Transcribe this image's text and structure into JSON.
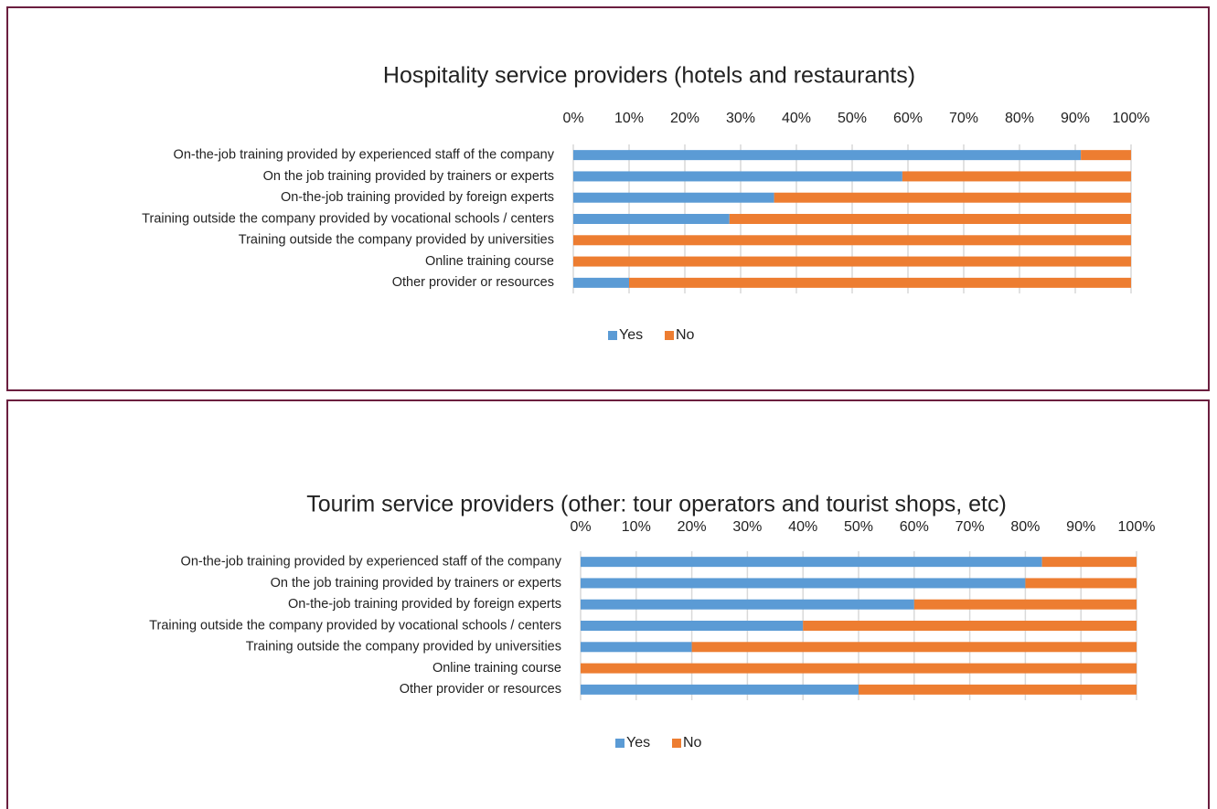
{
  "chart_data": [
    {
      "type": "stacked_bar_horizontal",
      "title": "Hospitality service providers (hotels and restaurants)",
      "categories": [
        "On-the-job training provided by experienced staff of the company",
        "On the job training provided by trainers or experts",
        "On-the-job training provided by foreign experts",
        "Training outside the company provided by vocational schools / centers",
        "Training outside the company provided by universities",
        "Online training course",
        "Other provider or resources"
      ],
      "series": [
        {
          "name": "Yes",
          "color": "#5b9bd5",
          "values": [
            91,
            59,
            36,
            28,
            0,
            0,
            10
          ]
        },
        {
          "name": "No",
          "color": "#ed7d31",
          "values": [
            9,
            41,
            64,
            72,
            100,
            100,
            90
          ]
        }
      ],
      "xlim": [
        0,
        100
      ],
      "xticks": [
        {
          "value": 0,
          "label": "0%"
        },
        {
          "value": 10,
          "label": "10%"
        },
        {
          "value": 20,
          "label": "20%"
        },
        {
          "value": 30,
          "label": "30%"
        },
        {
          "value": 40,
          "label": "40%"
        },
        {
          "value": 50,
          "label": "50%"
        },
        {
          "value": 60,
          "label": "60%"
        },
        {
          "value": 70,
          "label": "70%"
        },
        {
          "value": 80,
          "label": "80%"
        },
        {
          "value": 90,
          "label": "90%"
        },
        {
          "value": 100,
          "label": "100%"
        }
      ],
      "grid": true,
      "legend": "bottom"
    },
    {
      "type": "stacked_bar_horizontal",
      "title": "Tourim service providers (other: tour operators and tourist shops, etc)",
      "categories": [
        "On-the-job training provided by experienced staff of the company",
        "On the job training provided by trainers or experts",
        "On-the-job training provided by foreign experts",
        "Training outside the company provided by vocational schools / centers",
        "Training outside the company provided by universities",
        "Online training course",
        "Other provider or resources"
      ],
      "series": [
        {
          "name": "Yes",
          "color": "#5b9bd5",
          "values": [
            83,
            80,
            60,
            40,
            20,
            0,
            50
          ]
        },
        {
          "name": "No",
          "color": "#ed7d31",
          "values": [
            17,
            20,
            40,
            60,
            80,
            100,
            50
          ]
        }
      ],
      "xlim": [
        0,
        100
      ],
      "xticks": [
        {
          "value": 0,
          "label": "0%"
        },
        {
          "value": 10,
          "label": "10%"
        },
        {
          "value": 20,
          "label": "20%"
        },
        {
          "value": 30,
          "label": "30%"
        },
        {
          "value": 40,
          "label": "40%"
        },
        {
          "value": 50,
          "label": "50%"
        },
        {
          "value": 60,
          "label": "60%"
        },
        {
          "value": 70,
          "label": "70%"
        },
        {
          "value": 80,
          "label": "80%"
        },
        {
          "value": 90,
          "label": "90%"
        },
        {
          "value": 100,
          "label": "100%"
        }
      ],
      "grid": true,
      "legend": "bottom"
    }
  ]
}
